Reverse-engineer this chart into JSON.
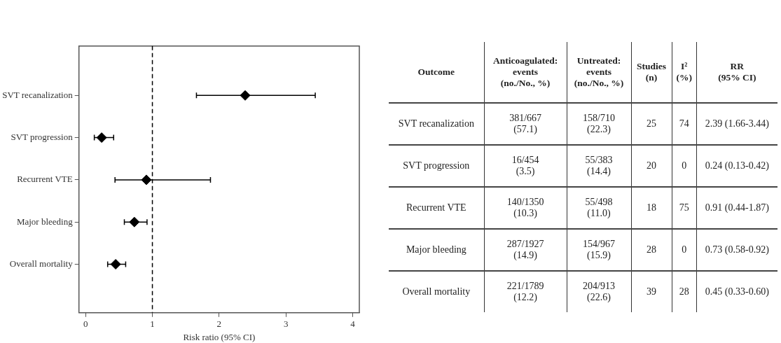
{
  "chart_data": [
    {
      "type": "scatter",
      "orientation": "horizontal",
      "xlabel": "Risk ratio (95% CI)",
      "categories": [
        "SVT recanalization",
        "SVT progression",
        "Recurrent VTE",
        "Major bleeding",
        "Overall mortality"
      ],
      "values": [
        2.39,
        0.24,
        0.91,
        0.73,
        0.45
      ],
      "errors": [
        [
          1.66,
          3.44
        ],
        [
          0.13,
          0.42
        ],
        [
          0.44,
          1.87
        ],
        [
          0.58,
          0.92
        ],
        [
          0.33,
          0.6
        ]
      ],
      "color": "#000000",
      "marker": "diamond",
      "xlim": [
        -0.1,
        4.1
      ],
      "xticks": [
        0,
        1,
        2,
        3,
        4
      ],
      "grid": false,
      "legend": false,
      "ref_lines": [
        {
          "axis": "x",
          "value": 1,
          "line_style": "dashed",
          "color": "#000000"
        }
      ]
    },
    {
      "type": "other",
      "categories": [
        "Outcome",
        "Anticoagulated:\nevents\n(no./No., %)",
        "Untreated:\nevents\n(no./No., %)",
        "Studies\n(n)",
        "I²\n(%)",
        "RR\n(95% CI)"
      ],
      "y_categories": [
        "SVT recanalization",
        "SVT progression",
        "Recurrent VTE",
        "Major bleeding",
        "Overall mortality"
      ],
      "cell_labels": [
        [
          "381/667\n(57.1)",
          "158/710\n(22.3)",
          "25",
          "74",
          "2.39 (1.66-3.44)"
        ],
        [
          "16/454\n(3.5)",
          "55/383\n(14.4)",
          "20",
          "0",
          "0.24 (0.13-0.42)"
        ],
        [
          "140/1350\n(10.3)",
          "55/498\n(11.0)",
          "18",
          "75",
          "0.91 (0.44-1.87)"
        ],
        [
          "287/1927\n(14.9)",
          "154/967\n(15.9)",
          "28",
          "0",
          "0.73 (0.58-0.92)"
        ],
        [
          "221/1789\n(12.2)",
          "204/913\n(22.6)",
          "39",
          "28",
          "0.45 (0.33-0.60)"
        ]
      ]
    }
  ]
}
